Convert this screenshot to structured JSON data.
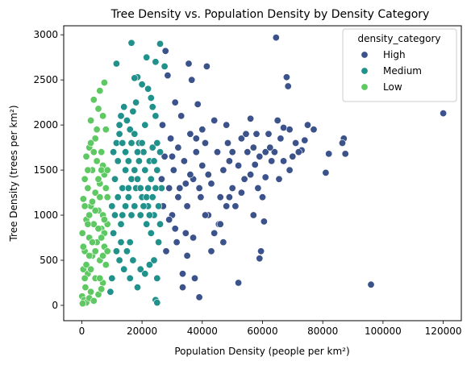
{
  "chart_data": {
    "type": "scatter",
    "title": "Tree Density vs. Population Density by Density Category",
    "xlabel": "Population Density (people per km²)",
    "ylabel": "Tree Density (trees per km²)",
    "xlim": [
      -6000,
      126000
    ],
    "ylim": [
      -170,
      3100
    ],
    "x_ticks": [
      0,
      20000,
      40000,
      60000,
      80000,
      100000,
      120000
    ],
    "x_tick_labels": [
      "0",
      "20000",
      "40000",
      "60000",
      "80000",
      "100000",
      "120000"
    ],
    "y_ticks": [
      0,
      500,
      1000,
      1500,
      2000,
      2500,
      3000
    ],
    "y_tick_labels": [
      "0",
      "500",
      "1000",
      "1500",
      "2000",
      "2500",
      "3000"
    ],
    "grid": false,
    "legend": {
      "title": "density_category",
      "placement": "top-right",
      "entries": [
        "High",
        "Medium",
        "Low"
      ]
    },
    "colors": {
      "High": "#3b528b",
      "Medium": "#21918c",
      "Low": "#5ec962"
    },
    "series": [
      {
        "name": "High",
        "points": [
          [
            64500,
            2970
          ],
          [
            120000,
            2130
          ],
          [
            96000,
            230
          ],
          [
            87000,
            1850
          ],
          [
            87500,
            1680
          ],
          [
            86500,
            1800
          ],
          [
            82000,
            1680
          ],
          [
            81000,
            1470
          ],
          [
            77000,
            1950
          ],
          [
            75000,
            2000
          ],
          [
            74000,
            1830
          ],
          [
            73000,
            1720
          ],
          [
            71000,
            1800
          ],
          [
            70000,
            1650
          ],
          [
            69000,
            1500
          ],
          [
            69000,
            1950
          ],
          [
            68500,
            2430
          ],
          [
            68000,
            2530
          ],
          [
            67000,
            1970
          ],
          [
            66000,
            1850
          ],
          [
            65000,
            2050
          ],
          [
            64000,
            1700
          ],
          [
            63000,
            1600
          ],
          [
            62000,
            1900
          ],
          [
            61000,
            1420
          ],
          [
            60500,
            930
          ],
          [
            60000,
            1200
          ],
          [
            59500,
            600
          ],
          [
            59000,
            520
          ],
          [
            58500,
            1300
          ],
          [
            57500,
            1560
          ],
          [
            57000,
            1000
          ],
          [
            56000,
            2070
          ],
          [
            55000,
            1700
          ],
          [
            54000,
            1400
          ],
          [
            53000,
            1850
          ],
          [
            52000,
            250
          ],
          [
            51000,
            1100
          ],
          [
            50000,
            1300
          ],
          [
            49000,
            1600
          ],
          [
            48500,
            1800
          ],
          [
            48000,
            2000
          ],
          [
            47000,
            1500
          ],
          [
            46000,
            1200
          ],
          [
            45500,
            900
          ],
          [
            45000,
            1700
          ],
          [
            44000,
            2050
          ],
          [
            43000,
            1350
          ],
          [
            42000,
            1000
          ],
          [
            41500,
            2650
          ],
          [
            41000,
            1800
          ],
          [
            40000,
            1550
          ],
          [
            39500,
            1200
          ],
          [
            39000,
            90
          ],
          [
            38500,
            2230
          ],
          [
            38000,
            1700
          ],
          [
            37500,
            300
          ],
          [
            37000,
            1400
          ],
          [
            36500,
            2500
          ],
          [
            36000,
            1900
          ],
          [
            35500,
            2680
          ],
          [
            35000,
            1100
          ],
          [
            34500,
            800
          ],
          [
            34000,
            1600
          ],
          [
            33500,
            200
          ],
          [
            33000,
            2100
          ],
          [
            32500,
            1300
          ],
          [
            32000,
            1750
          ],
          [
            31500,
            700
          ],
          [
            31000,
            2250
          ],
          [
            30500,
            1500
          ],
          [
            30000,
            1000
          ],
          [
            29500,
            1850
          ],
          [
            29000,
            1300
          ],
          [
            28500,
            2550
          ],
          [
            28000,
            600
          ],
          [
            27800,
            2820
          ],
          [
            27500,
            1650
          ],
          [
            27000,
            1100
          ],
          [
            26800,
            2000
          ],
          [
            26500,
            1400
          ],
          [
            33500,
            350
          ],
          [
            46000,
            900
          ],
          [
            56000,
            1450
          ],
          [
            53000,
            1250
          ],
          [
            40000,
            1950
          ],
          [
            44000,
            800
          ],
          [
            48000,
            1100
          ],
          [
            50000,
            1700
          ],
          [
            61000,
            1700
          ],
          [
            65500,
            1400
          ],
          [
            58000,
            1900
          ],
          [
            36000,
            1450
          ],
          [
            38000,
            1850
          ],
          [
            42000,
            1450
          ],
          [
            30000,
            1650
          ],
          [
            32000,
            1200
          ],
          [
            34500,
            1350
          ],
          [
            29000,
            950
          ],
          [
            31000,
            850
          ],
          [
            35000,
            550
          ],
          [
            37000,
            750
          ],
          [
            43000,
            600
          ],
          [
            47000,
            700
          ],
          [
            49000,
            1200
          ],
          [
            52000,
            1550
          ],
          [
            54500,
            1900
          ],
          [
            57000,
            1750
          ],
          [
            59000,
            1650
          ],
          [
            62500,
            1750
          ],
          [
            67000,
            1600
          ],
          [
            72000,
            1700
          ],
          [
            39000,
            1300
          ],
          [
            41000,
            1000
          ]
        ]
      },
      {
        "name": "Medium",
        "points": [
          [
            16500,
            2910
          ],
          [
            26000,
            2900
          ],
          [
            27500,
            2650
          ],
          [
            21500,
            2750
          ],
          [
            24500,
            2700
          ],
          [
            11500,
            2680
          ],
          [
            18500,
            2530
          ],
          [
            17500,
            2520
          ],
          [
            20000,
            2450
          ],
          [
            22000,
            2400
          ],
          [
            23000,
            2300
          ],
          [
            14000,
            2200
          ],
          [
            13000,
            2100
          ],
          [
            12500,
            1900
          ],
          [
            15000,
            2050
          ],
          [
            16000,
            1950
          ],
          [
            17000,
            2150
          ],
          [
            19000,
            1800
          ],
          [
            20500,
            1700
          ],
          [
            21000,
            2000
          ],
          [
            22500,
            1600
          ],
          [
            23500,
            1750
          ],
          [
            24500,
            2100
          ],
          [
            25000,
            1500
          ],
          [
            11000,
            1400
          ],
          [
            12000,
            1600
          ],
          [
            13500,
            1300
          ],
          [
            14500,
            1500
          ],
          [
            15500,
            1200
          ],
          [
            16500,
            1400
          ],
          [
            17500,
            1100
          ],
          [
            18000,
            1300
          ],
          [
            19500,
            1000
          ],
          [
            20000,
            1200
          ],
          [
            21500,
            900
          ],
          [
            22000,
            1100
          ],
          [
            23000,
            800
          ],
          [
            24000,
            1000
          ],
          [
            25500,
            700
          ],
          [
            10500,
            800
          ],
          [
            11500,
            600
          ],
          [
            12500,
            500
          ],
          [
            13000,
            700
          ],
          [
            14000,
            400
          ],
          [
            15000,
            600
          ],
          [
            16000,
            300
          ],
          [
            17000,
            500
          ],
          [
            18500,
            200
          ],
          [
            19500,
            400
          ],
          [
            21000,
            350
          ],
          [
            22500,
            450
          ],
          [
            24000,
            500
          ],
          [
            25000,
            300
          ],
          [
            24500,
            60
          ],
          [
            25000,
            30
          ],
          [
            9500,
            150
          ],
          [
            10000,
            300
          ],
          [
            11000,
            1000
          ],
          [
            12000,
            1200
          ],
          [
            13000,
            900
          ],
          [
            14500,
            1100
          ],
          [
            15500,
            1300
          ],
          [
            16500,
            1000
          ],
          [
            17500,
            1500
          ],
          [
            18500,
            1700
          ],
          [
            19000,
            1600
          ],
          [
            20000,
            1800
          ],
          [
            21000,
            1500
          ],
          [
            22000,
            1300
          ],
          [
            23000,
            1400
          ],
          [
            24000,
            1600
          ],
          [
            25000,
            1800
          ],
          [
            26000,
            1700
          ],
          [
            26500,
            1300
          ],
          [
            10500,
            1700
          ],
          [
            11500,
            1800
          ],
          [
            12500,
            2000
          ],
          [
            13500,
            1800
          ],
          [
            14500,
            1700
          ],
          [
            15500,
            1600
          ],
          [
            16500,
            1800
          ],
          [
            17500,
            1900
          ],
          [
            18500,
            1400
          ],
          [
            19500,
            1300
          ],
          [
            20500,
            1100
          ],
          [
            21500,
            1200
          ],
          [
            22500,
            1000
          ],
          [
            23500,
            1200
          ],
          [
            24500,
            1300
          ],
          [
            25500,
            1100
          ],
          [
            18000,
            2250
          ],
          [
            23500,
            2200
          ],
          [
            13500,
            1000
          ],
          [
            10000,
            1100
          ],
          [
            26000,
            900
          ],
          [
            16000,
            700
          ]
        ]
      },
      {
        "name": "Low",
        "points": [
          [
            7500,
            2470
          ],
          [
            6000,
            2380
          ],
          [
            4000,
            2280
          ],
          [
            5500,
            2180
          ],
          [
            3000,
            2050
          ],
          [
            7000,
            2100
          ],
          [
            8000,
            1950
          ],
          [
            4500,
            1850
          ],
          [
            2500,
            1750
          ],
          [
            6500,
            1700
          ],
          [
            1500,
            1650
          ],
          [
            5000,
            1600
          ],
          [
            3500,
            1500
          ],
          [
            7500,
            1450
          ],
          [
            1000,
            1400
          ],
          [
            6000,
            1350
          ],
          [
            2000,
            1300
          ],
          [
            4500,
            1250
          ],
          [
            8500,
            1200
          ],
          [
            500,
            1180
          ],
          [
            3000,
            1100
          ],
          [
            5500,
            1050
          ],
          [
            7000,
            1000
          ],
          [
            1500,
            950
          ],
          [
            4000,
            900
          ],
          [
            6500,
            850
          ],
          [
            200,
            800
          ],
          [
            2500,
            750
          ],
          [
            5000,
            700
          ],
          [
            7500,
            650
          ],
          [
            1000,
            600
          ],
          [
            3500,
            550
          ],
          [
            6000,
            500
          ],
          [
            8000,
            450
          ],
          [
            500,
            400
          ],
          [
            2000,
            350
          ],
          [
            4500,
            300
          ],
          [
            7000,
            250
          ],
          [
            1200,
            200
          ],
          [
            3000,
            150
          ],
          [
            5500,
            120
          ],
          [
            100,
            100
          ],
          [
            800,
            60
          ],
          [
            1500,
            30
          ],
          [
            300,
            20
          ],
          [
            2500,
            80
          ],
          [
            4000,
            50
          ],
          [
            6500,
            180
          ],
          [
            8500,
            900
          ],
          [
            2000,
            1500
          ],
          [
            3000,
            1800
          ],
          [
            5000,
            1950
          ],
          [
            6000,
            1200
          ],
          [
            7000,
            1550
          ],
          [
            8000,
            1300
          ],
          [
            1000,
            1100
          ],
          [
            2500,
            1000
          ],
          [
            3500,
            1150
          ],
          [
            4500,
            1050
          ],
          [
            5500,
            1400
          ],
          [
            6500,
            1500
          ],
          [
            7500,
            800
          ],
          [
            500,
            650
          ],
          [
            1500,
            450
          ],
          [
            2500,
            550
          ],
          [
            3500,
            700
          ],
          [
            4500,
            600
          ],
          [
            5500,
            850
          ],
          [
            6500,
            750
          ],
          [
            7500,
            950
          ],
          [
            8500,
            1500
          ],
          [
            4000,
            1700
          ],
          [
            2000,
            900
          ],
          [
            3000,
            400
          ],
          [
            1000,
            300
          ],
          [
            6000,
            300
          ],
          [
            7000,
            550
          ],
          [
            8500,
            600
          ]
        ]
      }
    ]
  }
}
